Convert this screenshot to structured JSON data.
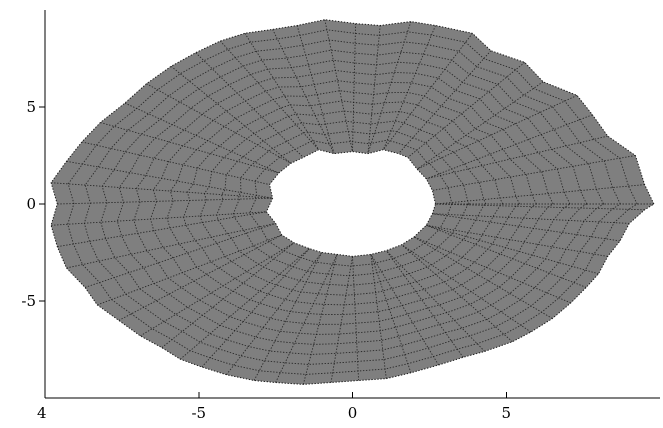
{
  "chart_data": {
    "type": "area",
    "title": "",
    "xlabel": "",
    "ylabel": "",
    "xlim": [
      -10,
      10
    ],
    "ylim": [
      -10,
      10
    ],
    "x_ticks": [
      {
        "value": -5,
        "label": "-5"
      },
      {
        "value": 0,
        "label": "0"
      },
      {
        "value": 5,
        "label": "5"
      }
    ],
    "y_ticks": [
      {
        "value": 5,
        "label": "5"
      },
      {
        "value": 0,
        "label": "0"
      },
      {
        "value": -5,
        "label": "-5"
      }
    ],
    "corner_tick_label": "4",
    "grid": false,
    "fill_color": "#7f7f7f",
    "mesh_color": "#1b1b1b",
    "series": [
      {
        "outer_boundary": {
          "x": [
            9.8,
            9.5,
            9.2,
            8.3,
            7.8,
            7.3,
            6.2,
            5.6,
            4.5,
            3.9,
            2.7,
            1.9,
            0.9,
            0.1,
            -0.9,
            -1.8,
            -2.6,
            -3.5,
            -4.3,
            -5.1,
            -5.9,
            -6.7,
            -7.4,
            -8.2,
            -8.8,
            -9.3,
            -9.8,
            -9.6,
            -9.8,
            -9.6,
            -9.3,
            -8.7,
            -8.3,
            -7.6,
            -6.9,
            -6.2,
            -5.6,
            -4.9,
            -4.1,
            -3.2,
            -2.5,
            -1.6,
            -0.7,
            0.2,
            1.1,
            1.9,
            2.8,
            3.6,
            4.3,
            5.2,
            5.8,
            6.5,
            7.1,
            7.6,
            8.0,
            8.3,
            8.7,
            9.0,
            9.5
          ],
          "y": [
            0.0,
            1.0,
            2.5,
            3.5,
            4.6,
            5.6,
            6.3,
            7.3,
            7.9,
            8.8,
            9.2,
            9.4,
            9.2,
            9.3,
            9.5,
            9.2,
            9.0,
            8.8,
            8.4,
            7.8,
            7.1,
            6.2,
            5.2,
            4.2,
            3.2,
            2.2,
            1.1,
            0.0,
            -1.1,
            -2.2,
            -3.3,
            -4.3,
            -5.2,
            -6.0,
            -6.8,
            -7.4,
            -8.0,
            -8.4,
            -8.8,
            -9.1,
            -9.2,
            -9.3,
            -9.2,
            -9.1,
            -9.0,
            -8.7,
            -8.3,
            -7.9,
            -7.6,
            -7.1,
            -6.6,
            -5.9,
            -5.1,
            -4.3,
            -3.6,
            -2.7,
            -1.9,
            -1.0,
            -0.3
          ]
        },
        "inner_boundary": {
          "x": [
            2.7,
            2.6,
            2.4,
            2.1,
            1.8,
            1.5,
            1.0,
            0.5,
            0.0,
            -0.6,
            -1.1,
            -1.6,
            -2.0,
            -2.4,
            -2.7,
            -2.6,
            -2.8,
            -2.5,
            -2.3,
            -1.9,
            -1.4,
            -1.0,
            -0.5,
            0.0,
            0.6,
            1.1,
            1.6,
            2.0,
            2.4,
            2.6
          ],
          "y": [
            0.0,
            0.7,
            1.3,
            1.8,
            2.4,
            2.6,
            2.8,
            2.6,
            2.7,
            2.6,
            2.8,
            2.4,
            2.1,
            1.6,
            1.0,
            0.3,
            -0.4,
            -1.0,
            -1.6,
            -2.0,
            -2.3,
            -2.5,
            -2.6,
            -2.7,
            -2.6,
            -2.4,
            -2.1,
            -1.7,
            -1.1,
            -0.5
          ]
        }
      }
    ]
  }
}
